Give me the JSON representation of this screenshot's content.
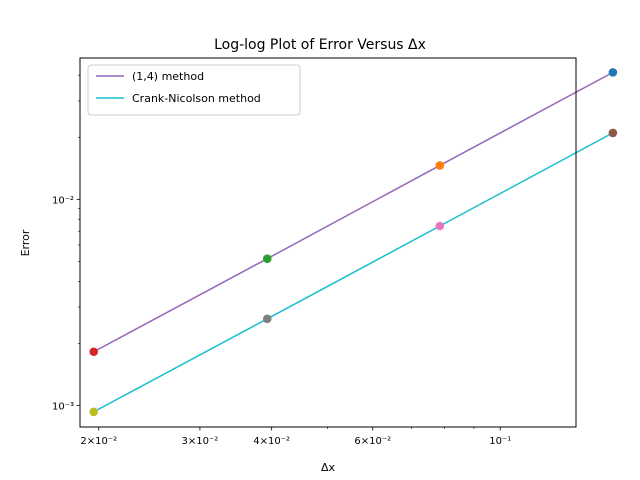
{
  "chart_data": {
    "type": "line",
    "title": "Log-log Plot of Error Versus Δx",
    "xlabel": "Δx",
    "ylabel": "Error",
    "xscale": "log",
    "yscale": "log",
    "xlim": [
      0.01855,
      0.1355
    ],
    "ylim": [
      0.000785,
      0.0485
    ],
    "grid": false,
    "legend_position": "top-left",
    "x_ticks": [
      {
        "value": 0.02,
        "label": "2×10⁻²"
      },
      {
        "value": 0.03,
        "label": "3×10⁻²"
      },
      {
        "value": 0.04,
        "label": "4×10⁻²"
      },
      {
        "value": 0.06,
        "label": "6×10⁻²"
      },
      {
        "value": 0.1,
        "label": "10⁻¹"
      }
    ],
    "x_minor_ticks": [
      0.05,
      0.07,
      0.08,
      0.09
    ],
    "y_ticks": [
      {
        "value": 0.001,
        "label": "10⁻³"
      },
      {
        "value": 0.01,
        "label": "10⁻²"
      }
    ],
    "y_minor_ticks": [
      0.002,
      0.003,
      0.004,
      0.005,
      0.006,
      0.007,
      0.008,
      0.009,
      0.02,
      0.03,
      0.04
    ],
    "series": [
      {
        "name": "(1,4) method",
        "color": "#9467bd",
        "x": [
          0.0196,
          0.0393,
          0.0785,
          0.1571
        ],
        "y": [
          0.00182,
          0.00515,
          0.0146,
          0.0413
        ],
        "point_colors": [
          "#d62728",
          "#2ca02c",
          "#ff7f0e",
          "#1f77b4"
        ]
      },
      {
        "name": "Crank-Nicolson method",
        "color": "#17becf",
        "x": [
          0.0196,
          0.0393,
          0.0785,
          0.1571
        ],
        "y": [
          0.00093,
          0.00263,
          0.00742,
          0.021
        ],
        "point_colors": [
          "#bcbd22",
          "#7f7f7f",
          "#e377c2",
          "#8c564b"
        ]
      }
    ]
  }
}
